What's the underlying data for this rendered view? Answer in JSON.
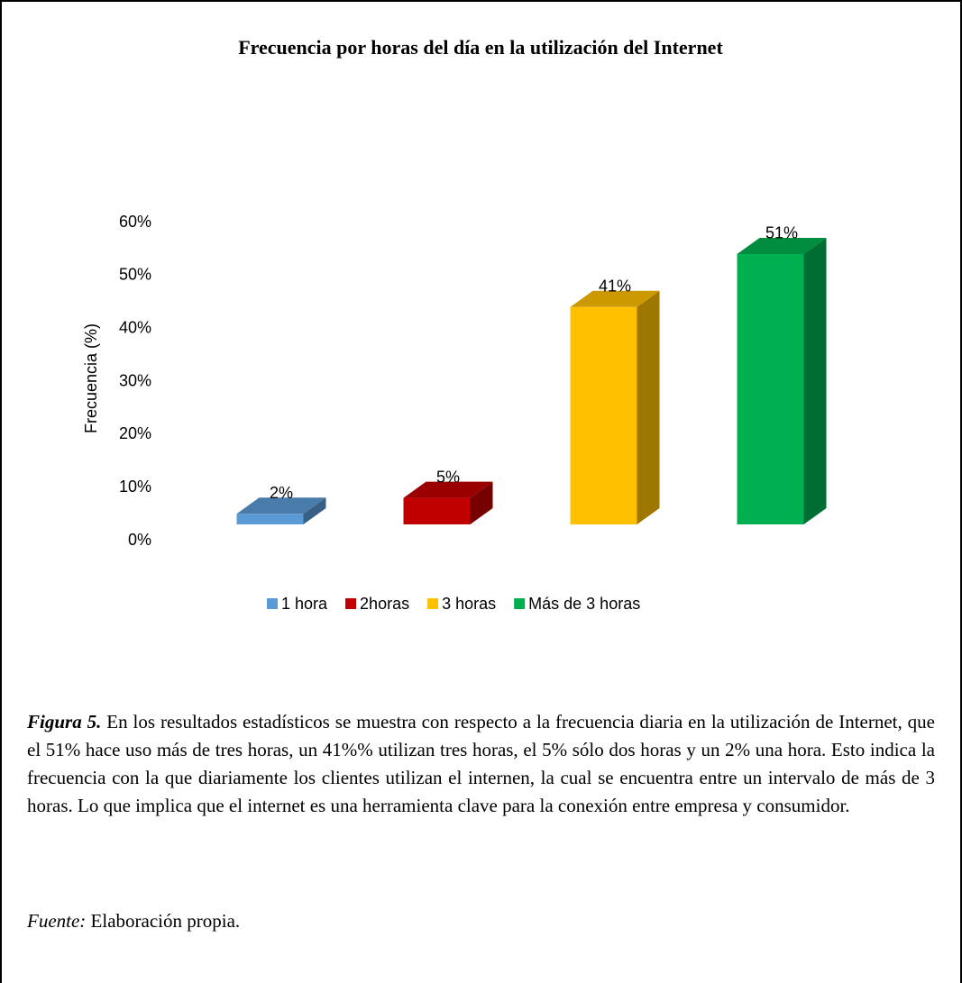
{
  "chart_data": {
    "type": "bar3d",
    "title": "Frecuencia por horas del día en la utilización del Internet",
    "ylabel": "Frecuencia (%)",
    "categories": [
      "1 hora",
      "2horas",
      "3 horas",
      "Más de 3 horas"
    ],
    "values": [
      2,
      5,
      41,
      51
    ],
    "value_labels": [
      "2%",
      "5%",
      "41%",
      "51%"
    ],
    "colors": [
      "#5b9bd5",
      "#c00000",
      "#ffc000",
      "#00b050"
    ],
    "ylim": [
      0,
      60
    ],
    "yticks": [
      {
        "value": 0,
        "label": "0%"
      },
      {
        "value": 10,
        "label": "10%"
      },
      {
        "value": 20,
        "label": "20%"
      },
      {
        "value": 30,
        "label": "30%"
      },
      {
        "value": 40,
        "label": "40%"
      },
      {
        "value": 50,
        "label": "50%"
      },
      {
        "value": 60,
        "label": "60%"
      }
    ],
    "grid": false,
    "legend": "bottom"
  },
  "caption": {
    "label": "Figura 5.",
    "text": "En los resultados estadísticos se muestra con respecto a la frecuencia diaria en la utilización de Internet, que el 51% hace uso más de tres horas, un 41%% utilizan tres horas, el 5% sólo dos horas y un 2% una hora. Esto indica la frecuencia con la que diariamente los clientes utilizan el internen, la cual se encuentra entre un intervalo de más de 3 horas. Lo que implica que el internet es una herramienta clave para la conexión entre empresa y consumidor.",
    "source_label": "Fuente:",
    "source_text": "Elaboración propia."
  }
}
